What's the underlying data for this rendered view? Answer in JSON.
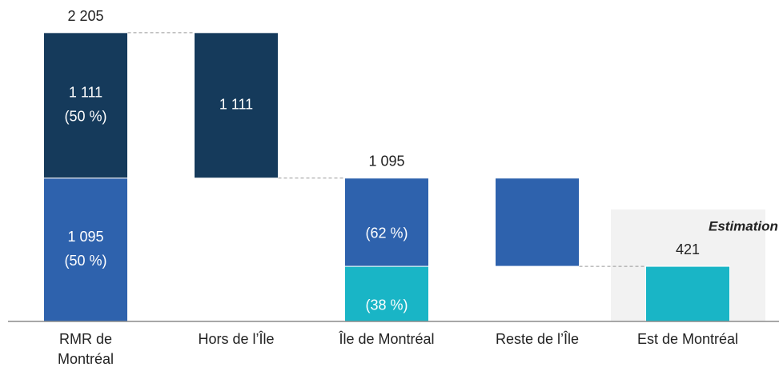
{
  "chart_data": {
    "type": "waterfall",
    "annotation": "Estimation",
    "categories": [
      [
        "RMR de",
        "Montréal"
      ],
      [
        "Hors de l’Île"
      ],
      [
        "Île de Montréal"
      ],
      [
        "Reste de l’Île"
      ],
      [
        "Est de Montréal"
      ]
    ],
    "bars": [
      {
        "kind": "total",
        "total": 2205,
        "total_label": "2 205",
        "connector": true,
        "segments": [
          {
            "value": 1095,
            "value_label": "1 095",
            "share": 50,
            "share_label": "(50 %)",
            "color": "#2e62ad"
          },
          {
            "value": 1111,
            "value_label": "1 111",
            "share": 50,
            "share_label": "(50 %)",
            "color": "#153a5b"
          }
        ]
      },
      {
        "kind": "decrease",
        "connector": true,
        "segments": [
          {
            "value": 1111,
            "value_label": "1 111",
            "color": "#153a5b"
          }
        ]
      },
      {
        "kind": "total",
        "total": 1095,
        "total_label": "1 095",
        "connector": false,
        "segments": [
          {
            "value": 421,
            "share": 38,
            "share_label": "(38 %)",
            "color": "#19b5c6"
          },
          {
            "value": 674,
            "share": 62,
            "share_label": "(62 %)",
            "color": "#2e62ad"
          }
        ]
      },
      {
        "kind": "decrease",
        "connector": true,
        "segments": [
          {
            "value": 674,
            "color": "#2e62ad"
          }
        ]
      },
      {
        "kind": "total",
        "total": 421,
        "total_label": "421",
        "connector": false,
        "highlight": true,
        "segments": [
          {
            "value": 421,
            "color": "#19b5c6"
          }
        ]
      }
    ]
  }
}
